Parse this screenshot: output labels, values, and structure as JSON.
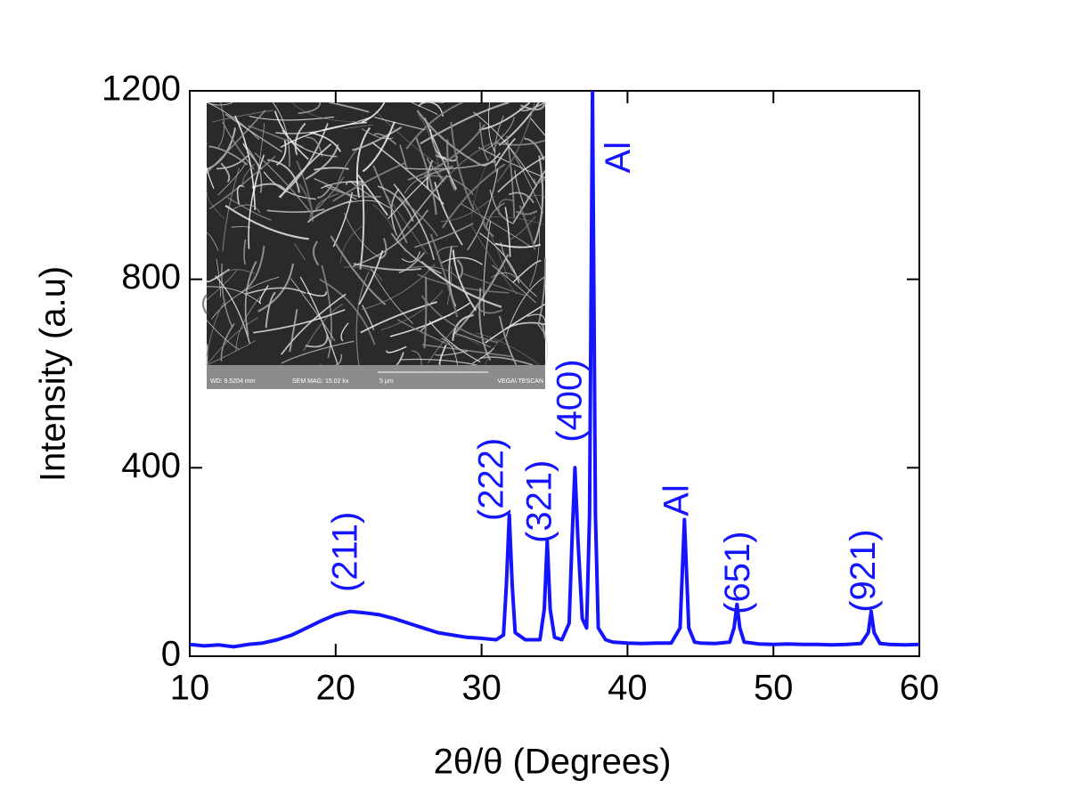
{
  "chart_data": {
    "type": "line",
    "xlabel": "2θ/θ (Degrees)",
    "ylabel": "Intensity (a.u)",
    "color": "#1414ff",
    "x": [
      10,
      11,
      12,
      13,
      14,
      15,
      16,
      17,
      18,
      19,
      20,
      21,
      22,
      23,
      24,
      25,
      26,
      27,
      28,
      29,
      30,
      31,
      31.5,
      31.7,
      31.9,
      32.1,
      32.3,
      33,
      34,
      34.3,
      34.5,
      34.7,
      35,
      35.5,
      36,
      36.2,
      36.4,
      36.6,
      36.9,
      37.2,
      37.4,
      37.6,
      37.8,
      38,
      38.5,
      39,
      40,
      41,
      42,
      43,
      43.6,
      43.9,
      44.2,
      44.6,
      45,
      46,
      47,
      47.3,
      47.5,
      47.7,
      48,
      49,
      50,
      51,
      52,
      53,
      54,
      55,
      56,
      56.5,
      56.7,
      56.9,
      57.3,
      58,
      59,
      60
    ],
    "values": [
      25,
      22,
      24,
      20,
      25,
      28,
      35,
      45,
      60,
      75,
      88,
      95,
      92,
      88,
      80,
      70,
      60,
      50,
      45,
      40,
      38,
      35,
      45,
      150,
      300,
      150,
      50,
      35,
      35,
      100,
      245,
      100,
      40,
      35,
      70,
      250,
      400,
      250,
      80,
      60,
      300,
      1200,
      300,
      60,
      35,
      30,
      28,
      27,
      28,
      28,
      60,
      290,
      60,
      30,
      28,
      27,
      30,
      60,
      110,
      60,
      30,
      26,
      25,
      26,
      25,
      25,
      24,
      25,
      27,
      50,
      95,
      50,
      27,
      25,
      24,
      25
    ],
    "xlim": [
      10,
      60
    ],
    "xticks": [
      10,
      20,
      30,
      40,
      50,
      60
    ],
    "ylim": [
      0,
      1200
    ],
    "yticks": [
      0,
      400,
      800,
      1200
    ],
    "annotations": [
      {
        "text": "(211)",
        "x": 20.8,
        "y": 136
      },
      {
        "text": "(222)",
        "x": 30.8,
        "y": 287
      },
      {
        "text": "(321)",
        "x": 34.1,
        "y": 240
      },
      {
        "text": "(400)",
        "x": 36.2,
        "y": 454
      },
      {
        "text": "Al",
        "x": 39.5,
        "y": 1025
      },
      {
        "text": "Al",
        "x": 43.5,
        "y": 297
      },
      {
        "text": "(651)",
        "x": 47.7,
        "y": 89
      },
      {
        "text": "(921)",
        "x": 56.3,
        "y": 93
      }
    ],
    "inset_labels": [
      "WD: 9.5204 mm",
      "SEM MAG: 15.02 kx",
      "5 μm",
      "VEGA\\ TESCAN"
    ]
  }
}
